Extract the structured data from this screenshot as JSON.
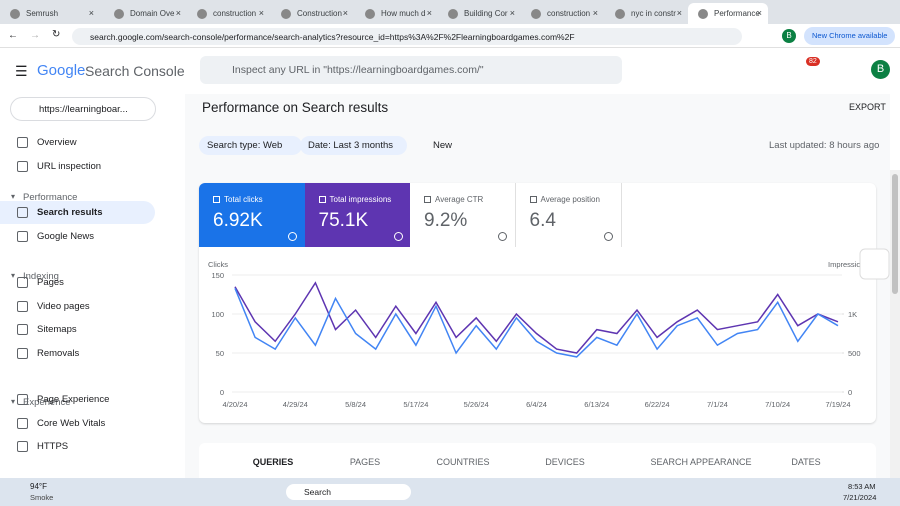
{
  "browser": {
    "tabs": [
      "Semrush",
      "Domain Ove",
      "construction",
      "Construction",
      "How much d",
      "Building Cor",
      "construction",
      "nyc in constr",
      "Performance"
    ],
    "url": "search.google.com/search-console/performance/search-analytics?resource_id=https%3A%2F%2Flearningboardgames.com%2F",
    "profile": "B",
    "update": "New Chrome available"
  },
  "header": {
    "brand": "Google",
    "product": "Search Console",
    "search_placeholder": "Inspect any URL in \"https://learningboardgames.com/\"",
    "notifications": "82",
    "avatar": "B"
  },
  "sidebar": {
    "property": "https://learningboar...",
    "items": [
      {
        "label": "Overview"
      },
      {
        "label": "URL inspection"
      },
      {
        "section": "Performance"
      },
      {
        "label": "Search results",
        "selected": true
      },
      {
        "label": "Google News"
      },
      {
        "section": "Indexing"
      },
      {
        "label": "Pages"
      },
      {
        "label": "Video pages"
      },
      {
        "label": "Sitemaps"
      },
      {
        "label": "Removals"
      },
      {
        "section": "Experience"
      },
      {
        "label": "Page Experience"
      },
      {
        "label": "Core Web Vitals"
      },
      {
        "label": "HTTPS"
      }
    ]
  },
  "page": {
    "title": "Performance on Search results",
    "export": "EXPORT",
    "filters": [
      "Search type: Web",
      "Date: Last 3 months"
    ],
    "new_filter": "New",
    "last_updated": "Last updated: 8 hours ago"
  },
  "metrics": [
    {
      "label": "Total clicks",
      "value": "6.92K"
    },
    {
      "label": "Total impressions",
      "value": "75.1K"
    },
    {
      "label": "Average CTR",
      "value": "9.2%"
    },
    {
      "label": "Average position",
      "value": "6.4"
    }
  ],
  "chart_data": {
    "type": "line",
    "y_label": "Clicks",
    "y2_label": "Impressions",
    "categories": [
      "4/20/24",
      null,
      null,
      "4/29/24",
      null,
      null,
      "5/8/24",
      null,
      null,
      "5/17/24",
      null,
      null,
      "5/26/24",
      null,
      null,
      "6/4/24",
      null,
      null,
      "6/13/24",
      null,
      null,
      "6/22/24",
      null,
      null,
      "7/1/24",
      null,
      null,
      "7/10/24",
      null,
      null,
      "7/19/24"
    ],
    "series": [
      {
        "name": "Total clicks",
        "color": "#4285f4",
        "values": [
          133,
          70,
          55,
          95,
          60,
          120,
          75,
          55,
          100,
          60,
          110,
          50,
          85,
          55,
          95,
          65,
          50,
          45,
          70,
          60,
          100,
          55,
          85,
          95,
          60,
          75,
          80,
          115,
          65,
          100,
          85
        ]
      },
      {
        "name": "Total impressions",
        "color": "#5e35b1",
        "axis": "y2",
        "values": [
          1350,
          900,
          650,
          1000,
          1400,
          800,
          1050,
          700,
          1100,
          750,
          1150,
          700,
          950,
          650,
          1000,
          750,
          550,
          500,
          800,
          750,
          1050,
          700,
          900,
          1050,
          800,
          850,
          900,
          1250,
          850,
          1000,
          900
        ]
      }
    ],
    "ylim": [
      0,
      150
    ],
    "yticks": [
      0,
      50,
      100,
      150
    ],
    "y2lim": [
      0,
      1500
    ],
    "y2ticks": [
      0,
      500,
      {
        "value": 1000,
        "label": "1K"
      }
    ],
    "grid": true
  },
  "result_tabs": [
    "QUERIES",
    "PAGES",
    "COUNTRIES",
    "DEVICES",
    "SEARCH APPEARANCE",
    "DATES"
  ],
  "taskbar": {
    "temperature": "94°F",
    "condition": "Smoke",
    "search": "Search",
    "time": "8:53 AM",
    "date": "7/21/2024"
  }
}
